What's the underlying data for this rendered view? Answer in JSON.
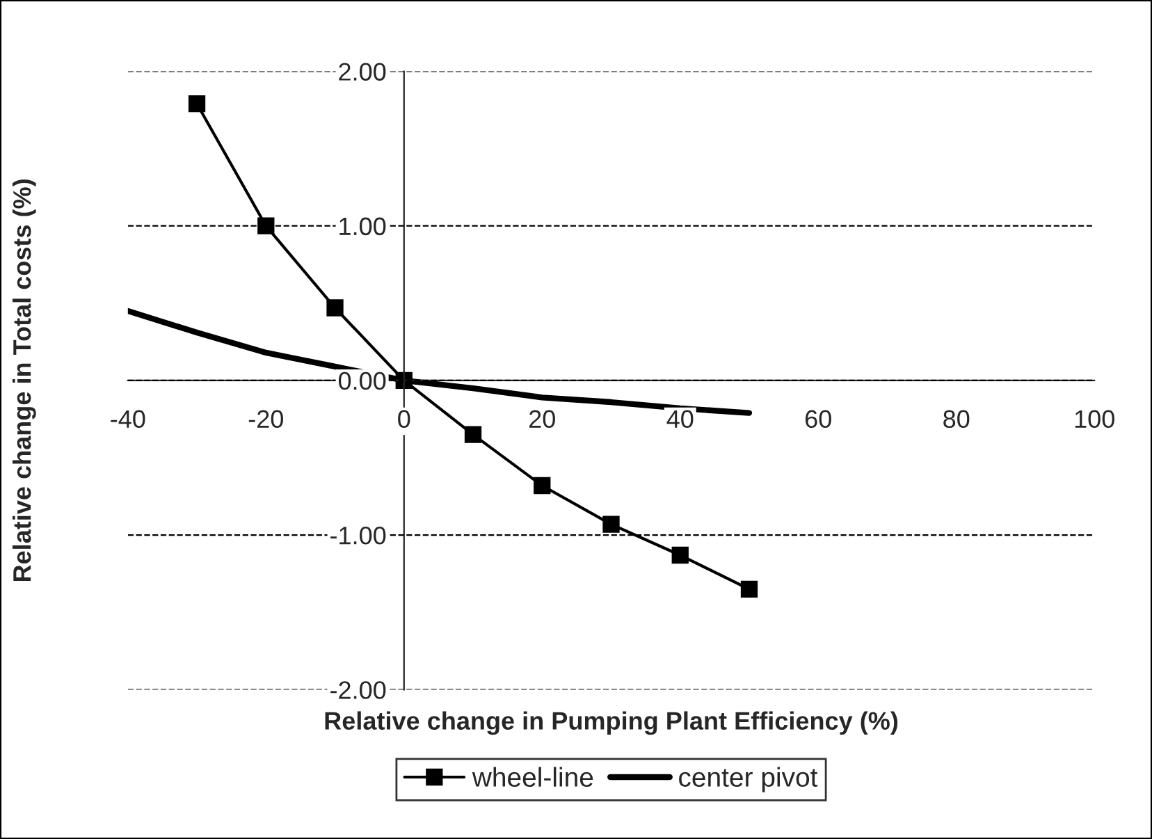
{
  "chart_data": {
    "type": "line",
    "xlabel": "Relative change in Pumping Plant Efficiency (%)",
    "ylabel": "Relative change in Total costs (%)",
    "xlim": [
      -40,
      100
    ],
    "xticks": [
      -40,
      -20,
      0,
      20,
      40,
      60,
      80,
      100
    ],
    "ylim": [
      -2,
      2
    ],
    "yticks": [
      {
        "value": -2,
        "label": "-2.00"
      },
      {
        "value": -1,
        "label": "-1.00"
      },
      {
        "value": 0,
        "label": "0.00"
      },
      {
        "value": 1,
        "label": "1.00"
      },
      {
        "value": 2,
        "label": "2.00"
      }
    ],
    "grid": "y",
    "legend": "bottom",
    "line_style": "solid",
    "series": [
      {
        "name": "wheel-line",
        "color": "#000000",
        "marker": "square",
        "x": [
          -30,
          -20,
          -10,
          0,
          10,
          20,
          30,
          40,
          50
        ],
        "values": [
          1.79,
          1.0,
          0.47,
          0,
          -0.35,
          -0.68,
          -0.93,
          -1.13,
          -1.35
        ]
      },
      {
        "name": "center pivot",
        "color": "#000000",
        "marker": "none",
        "x": [
          -40,
          -30,
          -20,
          -10,
          0,
          10,
          20,
          30,
          40,
          50
        ],
        "values": [
          0.45,
          0.31,
          0.18,
          0.09,
          0,
          -0.05,
          -0.11,
          -0.14,
          -0.18,
          -0.21
        ]
      }
    ]
  }
}
